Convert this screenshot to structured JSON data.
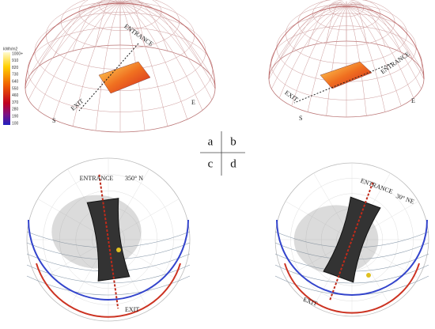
{
  "legend": {
    "title": "kWh/m2",
    "labels": [
      "1000+",
      "910",
      "820",
      "730",
      "640",
      "550",
      "460",
      "370",
      "280",
      "190",
      "100"
    ]
  },
  "grid_labels": [
    "a",
    "b",
    "c",
    "d"
  ],
  "panels": [
    {
      "entrance": "ENTRANCE",
      "exit": "EXIT",
      "compass": [
        "S",
        "E"
      ]
    },
    {
      "entrance": "ENTRANCE",
      "exit": "EXIT",
      "compass": [
        "S",
        "E"
      ]
    },
    {
      "entrance": "ENTRANCE",
      "exit": "EXIT",
      "orientation": "350° N"
    },
    {
      "entrance": "ENTRANCE",
      "exit": "EXIT",
      "orientation": "30° NE"
    }
  ]
}
